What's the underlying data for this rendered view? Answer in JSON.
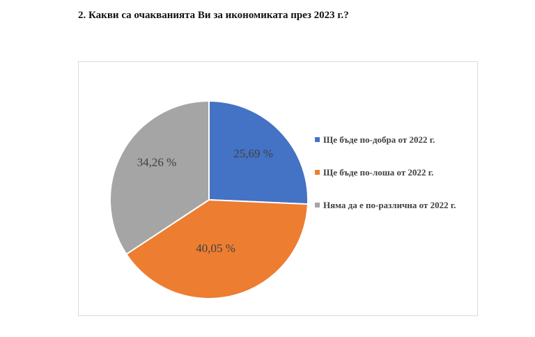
{
  "heading": "2. Какви са очакванията Ви за икономиката през 2023 г.?",
  "chart_data": {
    "type": "pie",
    "title": "",
    "categories": [
      "Ще бъде по-добра от 2022 г.",
      "Ще бъде по-лоша от 2022 г.",
      "Няма да е по-различна от 2022 г."
    ],
    "values": [
      25.69,
      40.05,
      34.26
    ],
    "data_labels": [
      "25,69 %",
      "40,05 %",
      "34,26 %"
    ],
    "colors": [
      "#4472C4",
      "#ED7D31",
      "#A5A5A5"
    ],
    "start_angle_deg": 0,
    "direction": "clockwise",
    "legend_position": "right"
  }
}
